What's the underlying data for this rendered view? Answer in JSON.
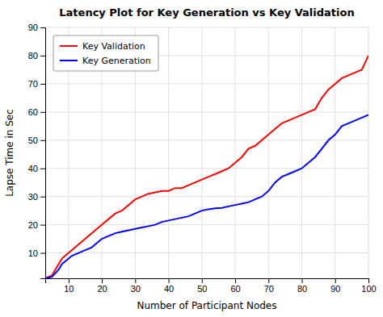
{
  "chart_data": {
    "type": "line",
    "title": "Latency Plot for Key Generation vs Key Validation",
    "xlabel": "Number of Participant Nodes",
    "ylabel": "Lapse Time in Sec",
    "x": [
      3,
      5,
      7,
      8,
      9,
      10,
      11,
      12,
      13,
      14,
      15,
      16,
      17,
      18,
      19,
      20,
      22,
      24,
      26,
      28,
      30,
      32,
      34,
      36,
      38,
      40,
      42,
      44,
      46,
      48,
      50,
      52,
      54,
      56,
      58,
      60,
      62,
      64,
      66,
      68,
      70,
      72,
      74,
      76,
      78,
      80,
      82,
      84,
      86,
      88,
      90,
      92,
      94,
      96,
      98,
      100
    ],
    "series": [
      {
        "name": "Key Validation",
        "color": "#ff0000",
        "values": [
          1,
          2,
          6,
          8,
          9,
          10,
          11,
          12,
          13,
          14,
          15,
          16,
          17,
          18,
          19,
          20,
          22,
          24,
          25,
          27,
          29,
          30,
          31,
          31.5,
          32,
          32,
          33,
          33,
          34,
          35,
          36,
          37,
          38,
          39,
          40,
          42,
          44,
          47,
          48,
          50,
          52,
          54,
          56,
          57,
          58,
          59,
          60,
          61,
          65,
          68,
          70,
          72,
          73,
          74,
          75,
          80
        ]
      },
      {
        "name": "Key Generation",
        "color": "#0000ff",
        "values": [
          1,
          1.5,
          4,
          6,
          7,
          8,
          9,
          9.5,
          10,
          10.5,
          11,
          11.5,
          12,
          13,
          14,
          15,
          16,
          17,
          17.5,
          18,
          18.5,
          19,
          19.5,
          20,
          21,
          21.5,
          22,
          22.5,
          23,
          24,
          25,
          25.5,
          25.8,
          26,
          26.5,
          27,
          27.5,
          28,
          29,
          30,
          32,
          35,
          37,
          38,
          39,
          40,
          42,
          44,
          47,
          50,
          52,
          55,
          56,
          57,
          58,
          59
        ]
      }
    ],
    "xlim": [
      3,
      100
    ],
    "ylim": [
      1,
      90
    ],
    "xticks": [
      10,
      20,
      30,
      40,
      50,
      60,
      70,
      80,
      90,
      100
    ],
    "yticks": [
      10,
      20,
      30,
      40,
      50,
      60,
      70,
      80,
      90
    ],
    "grid": true,
    "legend": "upper left"
  }
}
